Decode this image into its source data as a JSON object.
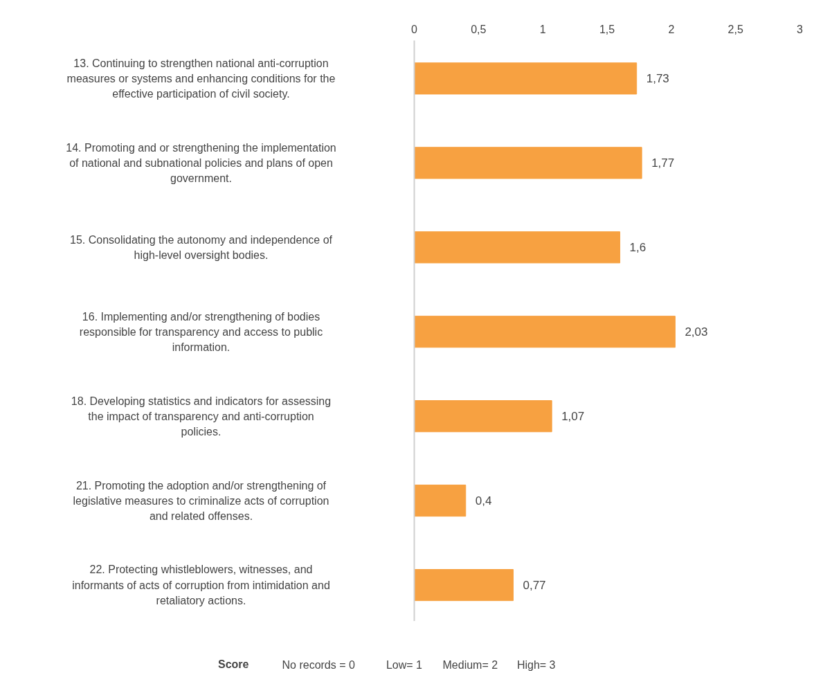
{
  "chart_data": {
    "type": "bar",
    "orientation": "horizontal",
    "categories": [
      "13. Continuing to strengthen national anti-corruption measures or systems and enhancing conditions for the effective participation of civil society.",
      "14. Promoting and or strengthening the implementation of national and subnational policies and plans of open government.",
      "15. Consolidating the autonomy and independence of high-level oversight bodies.",
      "16. Implementing and/or strengthening of bodies responsible for transparency and access to public information.",
      "18. Developing statistics and indicators for assessing the impact of transparency and anti-corruption policies.",
      "21. Promoting the adoption and/or strengthening of legislative measures to criminalize acts of corruption and related offenses.",
      "22. Protecting whistleblowers, witnesses, and informants of acts of corruption from intimidation and retaliatory actions."
    ],
    "series": [
      {
        "name": "Score",
        "color": "#f7a141",
        "values": [
          1.73,
          1.77,
          1.6,
          2.03,
          1.07,
          0.4,
          0.77
        ],
        "value_labels": [
          "1,73",
          "1,77",
          "1,6",
          "2,03",
          "1,07",
          "0,4",
          "0,77"
        ]
      }
    ],
    "xlim": [
      0,
      3
    ],
    "xticks": [
      0,
      {
        "value": 0.5,
        "label": "0,5"
      },
      1,
      {
        "value": 1.5,
        "label": "1,5"
      },
      2,
      {
        "value": 2.5,
        "label": "2,5"
      },
      3
    ],
    "annotations": [
      "No records = 0",
      "Low= 1",
      "Medium= 2",
      "High= 3"
    ],
    "legend": "bottom",
    "grid": false
  }
}
